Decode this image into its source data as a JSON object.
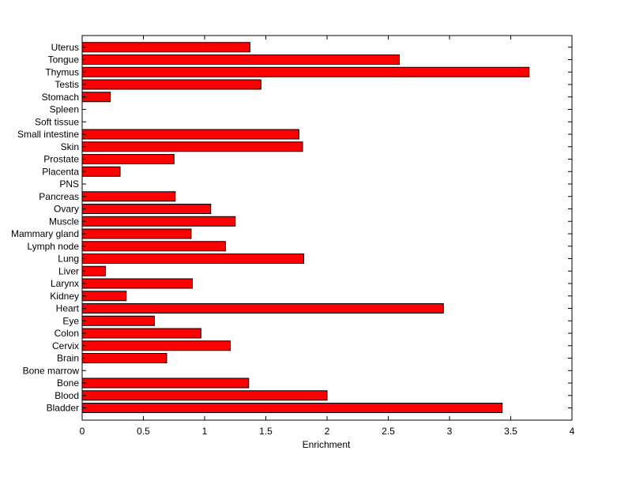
{
  "chart_data": {
    "type": "bar",
    "orientation": "horizontal",
    "title": "",
    "xlabel": "Enrichment",
    "ylabel": "",
    "xlim": [
      0,
      4
    ],
    "xticks": [
      "0",
      "0.5",
      "1",
      "1.5",
      "2",
      "2.5",
      "3",
      "3.5",
      "4"
    ],
    "categories": [
      "Bladder",
      "Blood",
      "Bone",
      "Bone marrow",
      "Brain",
      "Cervix",
      "Colon",
      "Eye",
      "Heart",
      "Kidney",
      "Larynx",
      "Liver",
      "Lung",
      "Lymph node",
      "Mammary gland",
      "Muscle",
      "Ovary",
      "Pancreas",
      "PNS",
      "Placenta",
      "Prostate",
      "Skin",
      "Small intestine",
      "Soft tissue",
      "Spleen",
      "Stomach",
      "Testis",
      "Thymus",
      "Tongue",
      "Uterus"
    ],
    "values": [
      3.43,
      2.0,
      1.36,
      0.0,
      0.69,
      1.21,
      0.97,
      0.59,
      2.95,
      0.36,
      0.9,
      0.19,
      1.81,
      1.17,
      0.89,
      1.25,
      1.05,
      0.76,
      0.0,
      0.31,
      0.75,
      1.8,
      1.77,
      0.0,
      0.0,
      0.23,
      1.46,
      3.65,
      2.59,
      1.37
    ],
    "grid": false,
    "colors": {
      "bar_fill": "#ff0000",
      "bar_edge": "#000000",
      "axis": "#000000",
      "background": "#ffffff"
    }
  }
}
